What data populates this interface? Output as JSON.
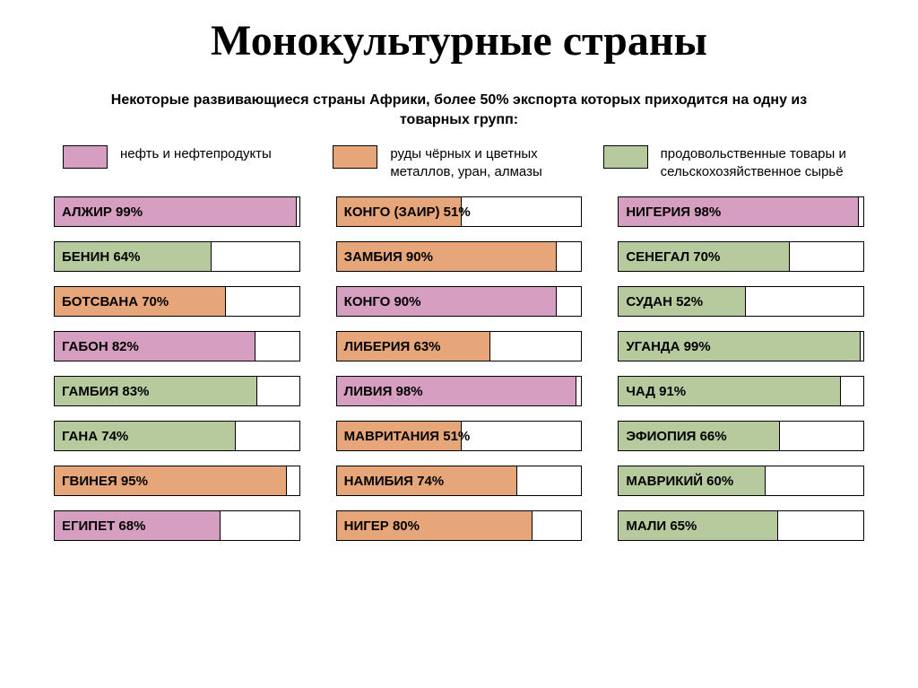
{
  "title": "Монокультурные страны",
  "title_fontsize": 48,
  "subtitle": "Некоторые развивающиеся страны Африки, более 50% экспорта которых приходится на одну из товарных групп:",
  "subtitle_fontsize": 16,
  "legend_fontsize": 15,
  "bar_label_fontsize": 15,
  "colors": {
    "oil": "#d69ec0",
    "metal": "#e6a67a",
    "food": "#b6ca9e",
    "border": "#000000",
    "background": "#ffffff"
  },
  "legend": [
    {
      "key": "oil",
      "label": "нефть и нефтепродукты"
    },
    {
      "key": "metal",
      "label": "руды чёрных и цветных металлов, уран, алмазы"
    },
    {
      "key": "food",
      "label": "продовольственные товары и сельскохозяйственное сырьё"
    }
  ],
  "columns": [
    [
      {
        "label": "АЛЖИР 99%",
        "pct": 99,
        "cat": "oil"
      },
      {
        "label": "БЕНИН 64%",
        "pct": 64,
        "cat": "food"
      },
      {
        "label": "БОТСВАНА 70%",
        "pct": 70,
        "cat": "metal"
      },
      {
        "label": "ГАБОН 82%",
        "pct": 82,
        "cat": "oil"
      },
      {
        "label": "ГАМБИЯ 83%",
        "pct": 83,
        "cat": "food"
      },
      {
        "label": "ГАНА 74%",
        "pct": 74,
        "cat": "food"
      },
      {
        "label": "ГВИНЕЯ 95%",
        "pct": 95,
        "cat": "metal"
      },
      {
        "label": "ЕГИПЕТ 68%",
        "pct": 68,
        "cat": "oil"
      }
    ],
    [
      {
        "label": "КОНГО (ЗАИР) 51%",
        "pct": 51,
        "cat": "metal"
      },
      {
        "label": "ЗАМБИЯ 90%",
        "pct": 90,
        "cat": "metal"
      },
      {
        "label": "КОНГО 90%",
        "pct": 90,
        "cat": "oil"
      },
      {
        "label": "ЛИБЕРИЯ 63%",
        "pct": 63,
        "cat": "metal"
      },
      {
        "label": "ЛИВИЯ 98%",
        "pct": 98,
        "cat": "oil"
      },
      {
        "label": "МАВРИТАНИЯ 51%",
        "pct": 51,
        "cat": "metal"
      },
      {
        "label": "НАМИБИЯ 74%",
        "pct": 74,
        "cat": "metal"
      },
      {
        "label": "НИГЕР 80%",
        "pct": 80,
        "cat": "metal"
      }
    ],
    [
      {
        "label": "НИГЕРИЯ 98%",
        "pct": 98,
        "cat": "oil"
      },
      {
        "label": "СЕНЕГАЛ 70%",
        "pct": 70,
        "cat": "food"
      },
      {
        "label": "СУДАН 52%",
        "pct": 52,
        "cat": "food"
      },
      {
        "label": "УГАНДА 99%",
        "pct": 99,
        "cat": "food"
      },
      {
        "label": "ЧАД 91%",
        "pct": 91,
        "cat": "food"
      },
      {
        "label": "ЭФИОПИЯ 66%",
        "pct": 66,
        "cat": "food"
      },
      {
        "label": "МАВРИКИЙ 60%",
        "pct": 60,
        "cat": "food"
      },
      {
        "label": "МАЛИ 65%",
        "pct": 65,
        "cat": "food"
      }
    ]
  ]
}
